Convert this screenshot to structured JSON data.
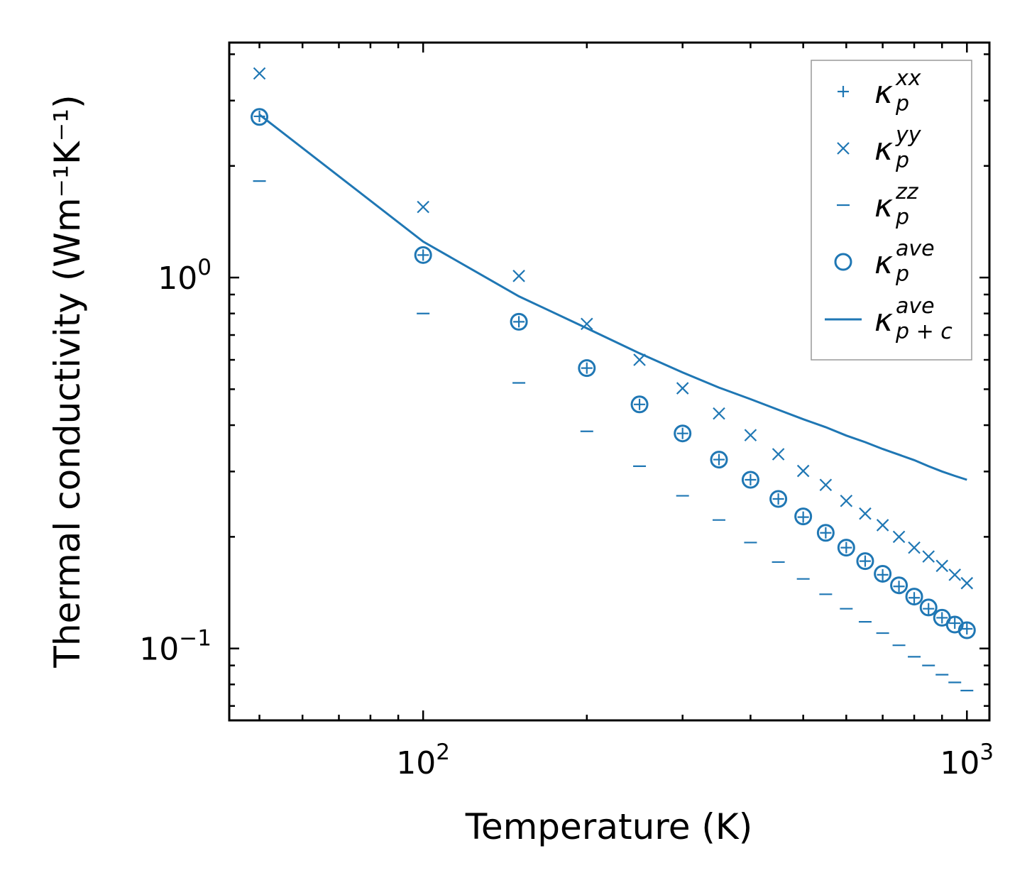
{
  "chart_data": {
    "type": "scatter",
    "xscale": "log",
    "yscale": "log",
    "xlabel": "Temperature (K)",
    "ylabel": "Thermal conductivity (Wm⁻¹K⁻¹)",
    "xlim": [
      44,
      1100
    ],
    "ylim": [
      0.064,
      4.3
    ],
    "xticks": [
      {
        "base": "10",
        "exp": "2",
        "value": 100
      },
      {
        "base": "10",
        "exp": "3",
        "value": 1000
      }
    ],
    "yticks": [
      {
        "base": "10",
        "exp": "−1",
        "value": 0.1
      },
      {
        "base": "10",
        "exp": "0",
        "value": 1
      }
    ],
    "color": "#1f77b4",
    "x": [
      50,
      100,
      150,
      200,
      250,
      300,
      350,
      400,
      450,
      500,
      550,
      600,
      650,
      700,
      750,
      800,
      850,
      900,
      950,
      1000
    ],
    "series": [
      {
        "name": "kappa_p^xx",
        "symbol": "κ",
        "sub": "p",
        "sup": "xx",
        "marker": "plus",
        "values": [
          2.72,
          1.15,
          0.76,
          0.57,
          0.455,
          0.38,
          0.323,
          0.285,
          0.253,
          0.226,
          0.205,
          0.187,
          0.172,
          0.158,
          0.147,
          0.137,
          0.128,
          0.121,
          0.117,
          0.113
        ]
      },
      {
        "name": "kappa_p^yy",
        "symbol": "κ",
        "sub": "p",
        "sup": "yy",
        "marker": "x",
        "values": [
          3.55,
          1.55,
          1.01,
          0.75,
          0.6,
          0.503,
          0.43,
          0.376,
          0.334,
          0.301,
          0.276,
          0.25,
          0.231,
          0.215,
          0.2,
          0.187,
          0.177,
          0.167,
          0.158,
          0.15
        ]
      },
      {
        "name": "kappa_p^zz",
        "symbol": "κ",
        "sub": "p",
        "sup": "zz",
        "marker": "hline",
        "values": [
          1.82,
          0.8,
          0.52,
          0.385,
          0.31,
          0.258,
          0.222,
          0.193,
          0.171,
          0.154,
          0.14,
          0.128,
          0.118,
          0.11,
          0.102,
          0.095,
          0.09,
          0.085,
          0.081,
          0.077
        ]
      },
      {
        "name": "kappa_p^ave",
        "symbol": "κ",
        "sub": "p",
        "sup": "ave",
        "marker": "circle",
        "values": [
          2.71,
          1.15,
          0.76,
          0.57,
          0.455,
          0.38,
          0.323,
          0.285,
          0.253,
          0.227,
          0.205,
          0.187,
          0.172,
          0.159,
          0.148,
          0.138,
          0.129,
          0.121,
          0.116,
          0.112
        ]
      },
      {
        "name": "kappa_p+c^ave",
        "symbol": "κ",
        "sub": "p + c",
        "sup": "ave",
        "marker": "line",
        "values": [
          2.75,
          1.25,
          0.89,
          0.73,
          0.625,
          0.555,
          0.505,
          0.47,
          0.44,
          0.415,
          0.395,
          0.375,
          0.36,
          0.345,
          0.333,
          0.322,
          0.31,
          0.3,
          0.292,
          0.285
        ]
      }
    ],
    "legend": {
      "location": "top-right"
    }
  }
}
